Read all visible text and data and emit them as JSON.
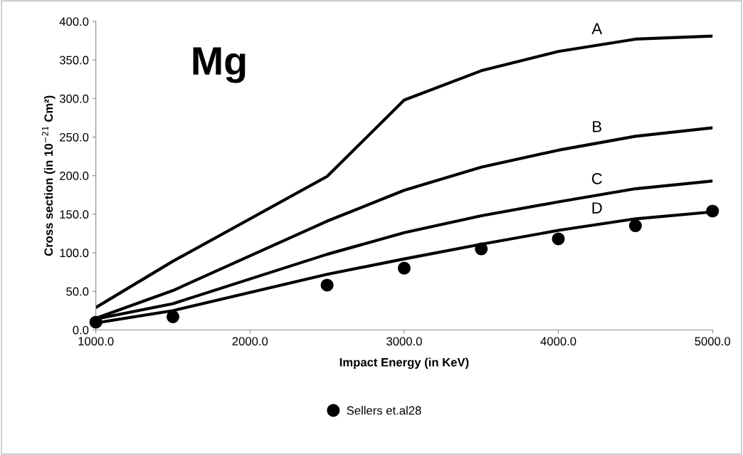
{
  "chart_data": {
    "type": "line",
    "xlabel": "Impact Energy (in KeV)",
    "ylabel": "Cross section (in 10$^{−21}$ Cm²)",
    "x": [
      1000,
      1500,
      2500,
      3000,
      3500,
      4000,
      4500,
      5000
    ],
    "series": [
      {
        "name": "A",
        "color": "#000000",
        "values": [
          29,
          89,
          199,
          298,
          336,
          361,
          377,
          381
        ]
      },
      {
        "name": "B",
        "color": "#000000",
        "values": [
          15,
          51,
          141,
          181,
          211,
          233,
          251,
          262
        ]
      },
      {
        "name": "C",
        "color": "#000000",
        "values": [
          14,
          34,
          98,
          126,
          148,
          166,
          183,
          193
        ]
      },
      {
        "name": "D",
        "color": "#000000",
        "values": [
          9,
          25,
          72,
          92,
          111,
          129,
          144,
          153
        ]
      },
      {
        "name": "Sellers et.al28",
        "type": "scatter",
        "marker": "circle",
        "color": "#000000",
        "values": [
          10,
          17,
          58,
          80,
          105,
          118,
          135,
          154
        ]
      }
    ],
    "xlim": [
      1000,
      5000
    ],
    "xticks": [
      {
        "value": 1000,
        "label": "1000.0"
      },
      {
        "value": 2000,
        "label": "2000.0"
      },
      {
        "value": 3000,
        "label": "3000.0"
      },
      {
        "value": 4000,
        "label": "4000.0"
      },
      {
        "value": 5000,
        "label": "5000.0"
      }
    ],
    "ylim": [
      0,
      400
    ],
    "yticks": [
      {
        "value": 0,
        "label": "0.0"
      },
      {
        "value": 50,
        "label": "50.0"
      },
      {
        "value": 100,
        "label": "100.0"
      },
      {
        "value": 150,
        "label": "150.0"
      },
      {
        "value": 200,
        "label": "200.0"
      },
      {
        "value": 250,
        "label": "250.0"
      },
      {
        "value": 300,
        "label": "300.0"
      },
      {
        "value": 350,
        "label": "350.0"
      },
      {
        "value": 400,
        "label": "400.0"
      }
    ],
    "annotations": [
      "Mg"
    ],
    "grid": false,
    "legend": "bottom",
    "line_style": "solid"
  }
}
